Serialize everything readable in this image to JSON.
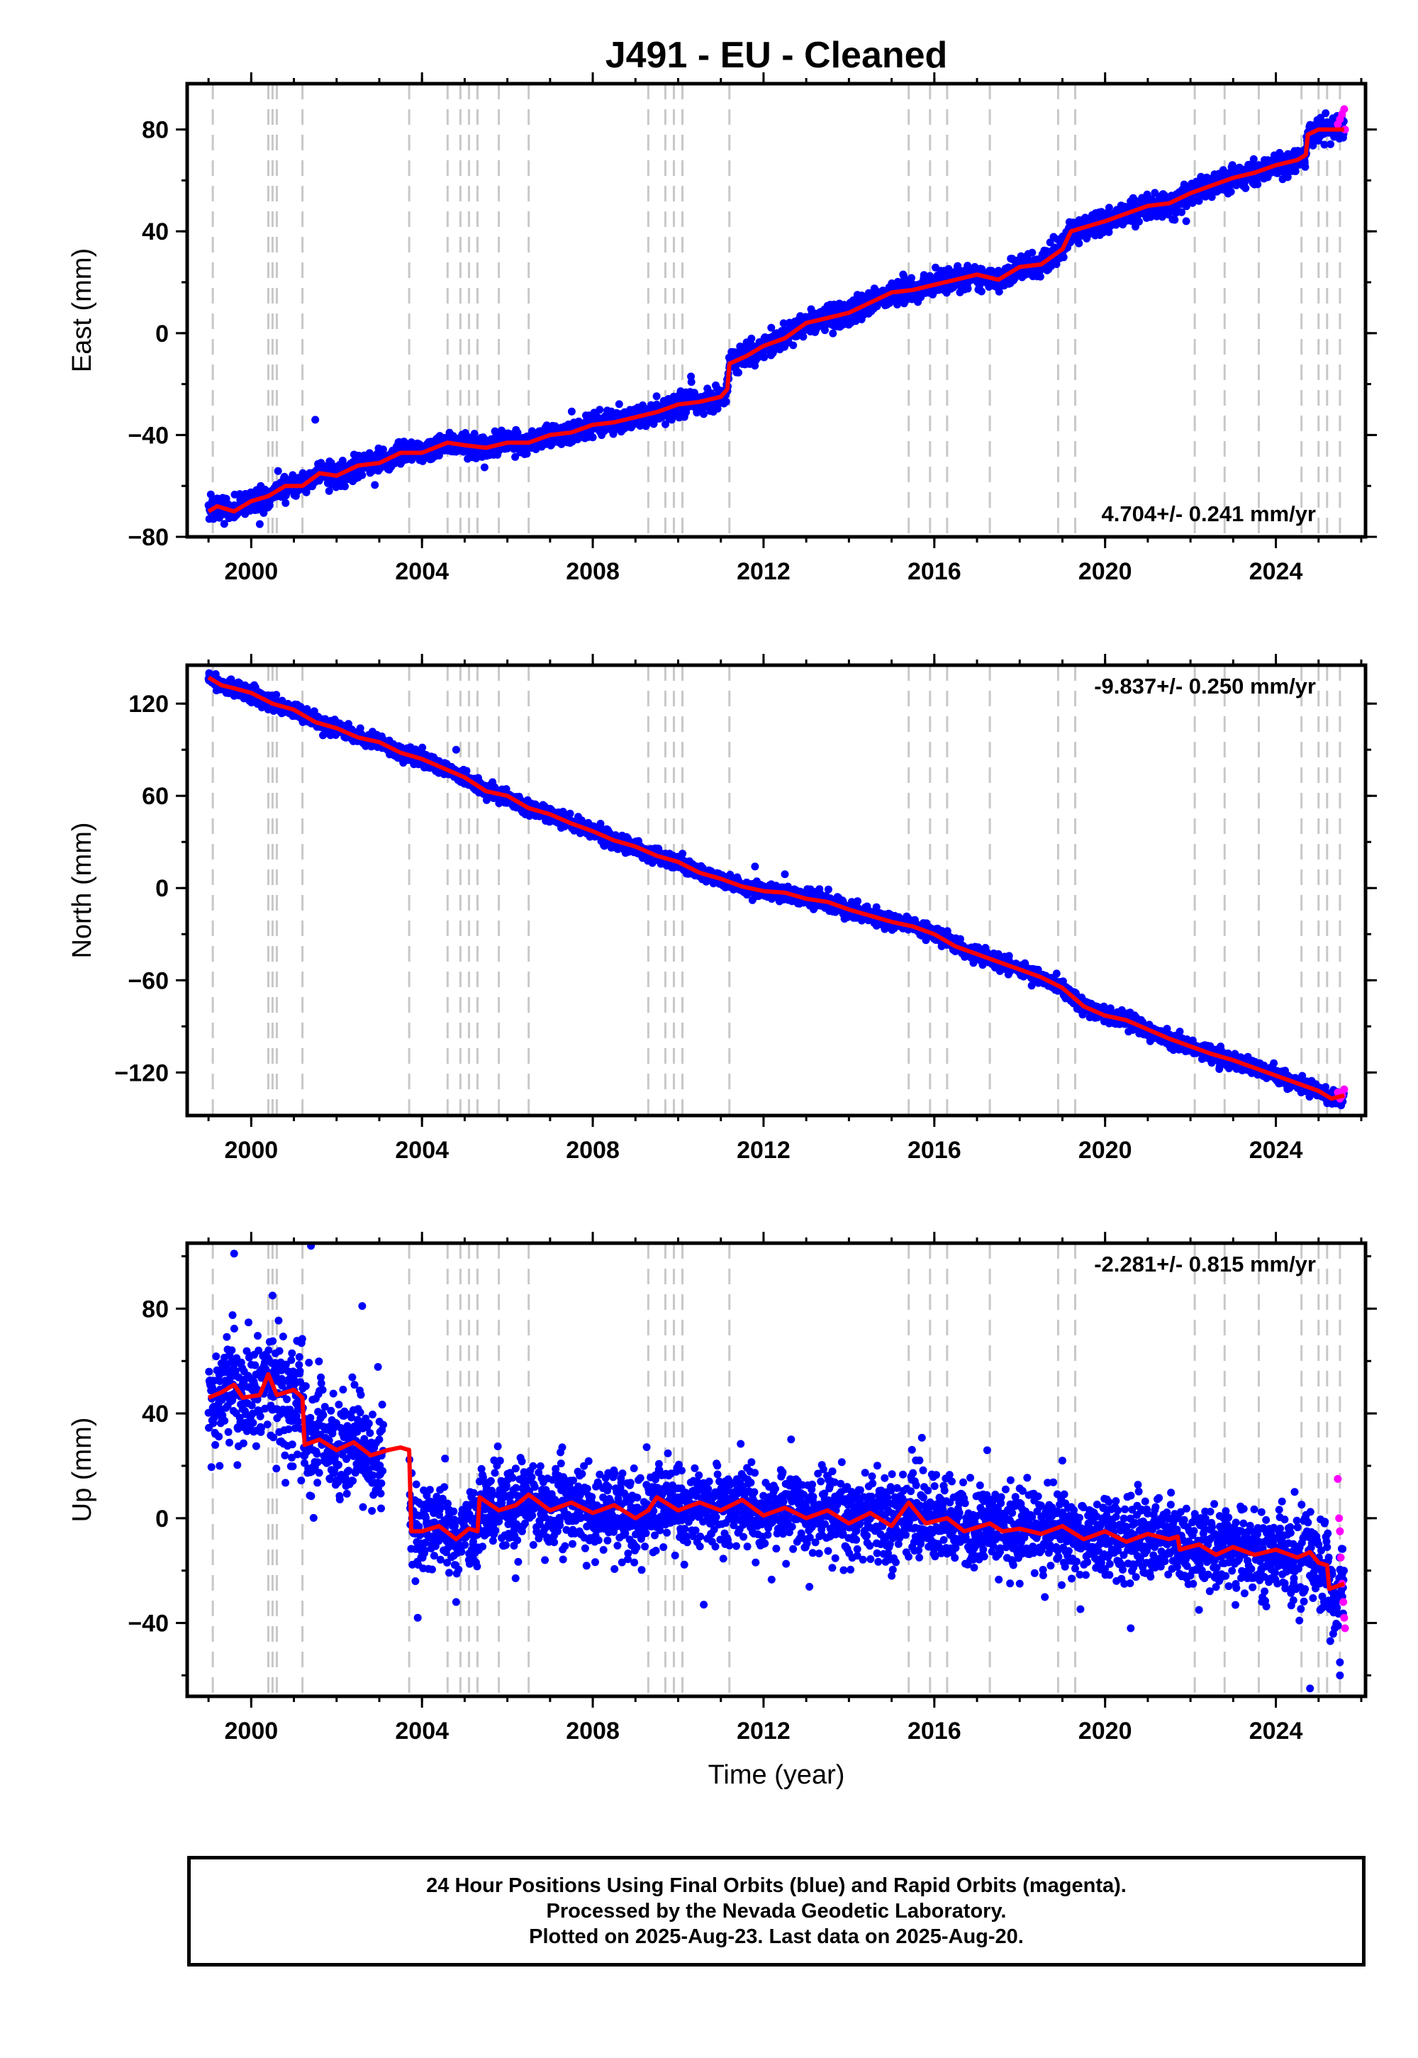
{
  "chart_data": {
    "type": "scatter",
    "title": "J491  - EU - Cleaned",
    "xlabel": "Time (year)",
    "xlim": [
      1998.5,
      2026.1
    ],
    "x_ticks": [
      2000,
      2004,
      2008,
      2012,
      2016,
      2020,
      2024
    ],
    "x_tick_labels": [
      "2000",
      "2004",
      "2008",
      "2012",
      "2016",
      "2020",
      "2024"
    ],
    "vertical_dashed_lines": [
      1999.1,
      2000.4,
      2000.5,
      2000.6,
      2001.2,
      2003.7,
      2004.6,
      2004.9,
      2005.1,
      2005.3,
      2005.8,
      2006.5,
      2009.3,
      2009.7,
      2009.9,
      2010.1,
      2011.2,
      2015.4,
      2015.9,
      2016.3,
      2017.3,
      2018.9,
      2019.3,
      2022.1,
      2022.8,
      2023.6,
      2024.6,
      2025.0,
      2025.2,
      2025.5
    ],
    "colors": {
      "final": "#0000ff",
      "rapid": "#ff00ff",
      "model": "#ff0000",
      "event": "#c8c8c8"
    },
    "panels": [
      {
        "ylabel": "East (mm)",
        "ylim": [
          -80,
          98
        ],
        "y_ticks": [
          -80,
          -40,
          0,
          40,
          80
        ],
        "y_tick_labels": [
          "−80",
          "−40",
          "0",
          "40",
          "80"
        ],
        "rate_label": "4.704+/- 0.241 mm/yr",
        "rate_position": "bottom-right",
        "noise_mm": 2.2,
        "outliers": [
          [
            2001.5,
            -34
          ],
          [
            2000.2,
            -75
          ],
          [
            2010.3,
            -17
          ],
          [
            2013.4,
            8
          ],
          [
            2021.9,
            44
          ]
        ],
        "model_curve": [
          [
            1999.0,
            -70
          ],
          [
            1999.2,
            -68
          ],
          [
            1999.6,
            -70
          ],
          [
            2000.0,
            -66
          ],
          [
            2000.4,
            -64
          ],
          [
            2000.8,
            -60
          ],
          [
            2001.2,
            -60
          ],
          [
            2001.6,
            -55
          ],
          [
            2002.0,
            -56
          ],
          [
            2002.5,
            -52
          ],
          [
            2003.0,
            -51
          ],
          [
            2003.5,
            -47
          ],
          [
            2004.0,
            -47
          ],
          [
            2004.6,
            -43
          ],
          [
            2005.0,
            -44
          ],
          [
            2005.5,
            -45
          ],
          [
            2006.0,
            -43
          ],
          [
            2006.5,
            -43
          ],
          [
            2007.0,
            -40
          ],
          [
            2007.5,
            -39
          ],
          [
            2008.0,
            -36
          ],
          [
            2008.5,
            -35
          ],
          [
            2009.0,
            -33
          ],
          [
            2009.5,
            -31
          ],
          [
            2010.0,
            -28
          ],
          [
            2010.5,
            -27
          ],
          [
            2011.0,
            -25
          ],
          [
            2011.15,
            -22
          ],
          [
            2011.2,
            -12
          ],
          [
            2011.6,
            -9
          ],
          [
            2012.0,
            -5
          ],
          [
            2012.5,
            -2
          ],
          [
            2013.0,
            4
          ],
          [
            2013.5,
            6
          ],
          [
            2014.0,
            8
          ],
          [
            2014.5,
            12
          ],
          [
            2015.0,
            16
          ],
          [
            2015.5,
            17
          ],
          [
            2016.0,
            19
          ],
          [
            2016.5,
            21
          ],
          [
            2017.0,
            23
          ],
          [
            2017.5,
            21
          ],
          [
            2018.0,
            26
          ],
          [
            2018.5,
            27
          ],
          [
            2019.0,
            33
          ],
          [
            2019.2,
            40
          ],
          [
            2019.6,
            42
          ],
          [
            2020.0,
            44
          ],
          [
            2020.5,
            47
          ],
          [
            2021.0,
            50
          ],
          [
            2021.5,
            51
          ],
          [
            2022.0,
            55
          ],
          [
            2022.5,
            58
          ],
          [
            2023.0,
            61
          ],
          [
            2023.5,
            63
          ],
          [
            2024.0,
            66
          ],
          [
            2024.5,
            68
          ],
          [
            2024.7,
            70
          ],
          [
            2024.75,
            78
          ],
          [
            2025.0,
            80
          ],
          [
            2025.6,
            80
          ]
        ],
        "rapid_points": [
          [
            2025.45,
            82
          ],
          [
            2025.5,
            84
          ],
          [
            2025.55,
            86
          ],
          [
            2025.6,
            88
          ],
          [
            2025.62,
            80
          ]
        ]
      },
      {
        "ylabel": "North (mm)",
        "ylim": [
          -148,
          145
        ],
        "y_ticks": [
          -120,
          -60,
          0,
          60,
          120
        ],
        "y_tick_labels": [
          "−120",
          "−60",
          "0",
          "60",
          "120"
        ],
        "rate_label": "-9.837+/- 0.250 mm/yr",
        "rate_position": "top-right",
        "noise_mm": 2.4,
        "outliers": [
          [
            2003.2,
            94
          ],
          [
            2012.5,
            9
          ],
          [
            2011.8,
            14
          ],
          [
            2004.8,
            90
          ]
        ],
        "model_curve": [
          [
            1999.0,
            137
          ],
          [
            1999.3,
            132
          ],
          [
            1999.6,
            130
          ],
          [
            2000.0,
            127
          ],
          [
            2000.5,
            120
          ],
          [
            2001.0,
            116
          ],
          [
            2001.5,
            108
          ],
          [
            2002.0,
            104
          ],
          [
            2002.5,
            98
          ],
          [
            2003.0,
            95
          ],
          [
            2003.5,
            88
          ],
          [
            2004.0,
            84
          ],
          [
            2004.5,
            78
          ],
          [
            2005.0,
            72
          ],
          [
            2005.5,
            63
          ],
          [
            2006.0,
            60
          ],
          [
            2006.5,
            52
          ],
          [
            2007.0,
            48
          ],
          [
            2007.5,
            42
          ],
          [
            2008.0,
            37
          ],
          [
            2008.5,
            31
          ],
          [
            2009.0,
            27
          ],
          [
            2009.5,
            21
          ],
          [
            2010.0,
            17
          ],
          [
            2010.5,
            10
          ],
          [
            2011.0,
            6
          ],
          [
            2011.5,
            1
          ],
          [
            2012.0,
            -2
          ],
          [
            2012.5,
            -3
          ],
          [
            2013.0,
            -7
          ],
          [
            2013.5,
            -9
          ],
          [
            2014.0,
            -14
          ],
          [
            2014.5,
            -18
          ],
          [
            2015.0,
            -22
          ],
          [
            2015.5,
            -25
          ],
          [
            2016.0,
            -30
          ],
          [
            2016.5,
            -38
          ],
          [
            2017.0,
            -43
          ],
          [
            2017.5,
            -48
          ],
          [
            2018.0,
            -53
          ],
          [
            2018.5,
            -58
          ],
          [
            2019.0,
            -65
          ],
          [
            2019.5,
            -77
          ],
          [
            2020.0,
            -83
          ],
          [
            2020.5,
            -86
          ],
          [
            2021.0,
            -92
          ],
          [
            2021.5,
            -98
          ],
          [
            2022.0,
            -103
          ],
          [
            2022.5,
            -108
          ],
          [
            2023.0,
            -112
          ],
          [
            2023.5,
            -117
          ],
          [
            2024.0,
            -122
          ],
          [
            2024.5,
            -127
          ],
          [
            2025.0,
            -132
          ],
          [
            2025.3,
            -137
          ],
          [
            2025.6,
            -135
          ]
        ],
        "rapid_points": [
          [
            2025.45,
            -133
          ],
          [
            2025.5,
            -137
          ],
          [
            2025.55,
            -135
          ],
          [
            2025.6,
            -131
          ]
        ]
      },
      {
        "ylabel": "Up (mm)",
        "ylim": [
          -68,
          105
        ],
        "y_ticks": [
          -40,
          0,
          40,
          80
        ],
        "y_tick_labels": [
          "−40",
          "0",
          "40",
          "80"
        ],
        "rate_label": "-2.281+/- 0.815 mm/yr",
        "rate_position": "top-right",
        "noise_mm": 8,
        "outliers": [
          [
            1999.6,
            101
          ],
          [
            2001.4,
            104
          ],
          [
            2002.6,
            81
          ],
          [
            2000.5,
            85
          ],
          [
            2003.9,
            -38
          ],
          [
            2004.8,
            -32
          ],
          [
            2015.0,
            -22
          ],
          [
            2018.0,
            -25
          ],
          [
            2019.0,
            22
          ],
          [
            2020.6,
            -42
          ],
          [
            2024.8,
            -65
          ],
          [
            2025.5,
            -60
          ],
          [
            2025.5,
            -55
          ],
          [
            2010.6,
            -33
          ],
          [
            2022.2,
            -35
          ]
        ],
        "model_curve": [
          [
            1999.0,
            46
          ],
          [
            1999.3,
            48
          ],
          [
            1999.6,
            51
          ],
          [
            1999.8,
            46
          ],
          [
            2000.2,
            47
          ],
          [
            2000.4,
            55
          ],
          [
            2000.6,
            47
          ],
          [
            2001.0,
            49
          ],
          [
            2001.2,
            46
          ],
          [
            2001.25,
            28
          ],
          [
            2001.6,
            30
          ],
          [
            2002.0,
            26
          ],
          [
            2002.4,
            29
          ],
          [
            2002.8,
            24
          ],
          [
            2003.2,
            26
          ],
          [
            2003.5,
            27
          ],
          [
            2003.7,
            26
          ],
          [
            2003.75,
            -5
          ],
          [
            2004.0,
            -5
          ],
          [
            2004.4,
            -3
          ],
          [
            2004.8,
            -8
          ],
          [
            2005.1,
            -4
          ],
          [
            2005.3,
            -5
          ],
          [
            2005.35,
            8
          ],
          [
            2005.8,
            3
          ],
          [
            2006.2,
            5
          ],
          [
            2006.5,
            9
          ],
          [
            2007.0,
            3
          ],
          [
            2007.5,
            6
          ],
          [
            2008.0,
            2
          ],
          [
            2008.5,
            5
          ],
          [
            2009.0,
            0
          ],
          [
            2009.3,
            3
          ],
          [
            2009.5,
            8
          ],
          [
            2010.0,
            3
          ],
          [
            2010.5,
            6
          ],
          [
            2011.0,
            3
          ],
          [
            2011.5,
            7
          ],
          [
            2012.0,
            1
          ],
          [
            2012.5,
            4
          ],
          [
            2013.0,
            0
          ],
          [
            2013.5,
            3
          ],
          [
            2014.0,
            -2
          ],
          [
            2014.5,
            2
          ],
          [
            2015.0,
            -3
          ],
          [
            2015.4,
            6
          ],
          [
            2015.8,
            -2
          ],
          [
            2016.3,
            0
          ],
          [
            2016.7,
            -5
          ],
          [
            2017.3,
            -2
          ],
          [
            2017.6,
            -5
          ],
          [
            2018.0,
            -4
          ],
          [
            2018.5,
            -6
          ],
          [
            2019.0,
            -3
          ],
          [
            2019.5,
            -8
          ],
          [
            2020.0,
            -5
          ],
          [
            2020.5,
            -9
          ],
          [
            2021.0,
            -6
          ],
          [
            2021.5,
            -8
          ],
          [
            2021.7,
            -7
          ],
          [
            2021.75,
            -12
          ],
          [
            2022.2,
            -10
          ],
          [
            2022.6,
            -14
          ],
          [
            2023.0,
            -11
          ],
          [
            2023.5,
            -14
          ],
          [
            2024.0,
            -12
          ],
          [
            2024.5,
            -15
          ],
          [
            2024.8,
            -13
          ],
          [
            2025.0,
            -17
          ],
          [
            2025.2,
            -18
          ],
          [
            2025.25,
            -27
          ],
          [
            2025.6,
            -25
          ]
        ],
        "rapid_points": [
          [
            2025.45,
            15
          ],
          [
            2025.5,
            -5
          ],
          [
            2025.52,
            -15
          ],
          [
            2025.55,
            -25
          ],
          [
            2025.6,
            -38
          ],
          [
            2025.62,
            -42
          ],
          [
            2025.48,
            0
          ],
          [
            2025.58,
            -32
          ]
        ]
      }
    ]
  },
  "caption": {
    "line1": "24 Hour Positions Using Final Orbits (blue) and Rapid Orbits (magenta).",
    "line2": "Processed by the Nevada Geodetic Laboratory.",
    "line3": "Plotted on 2025-Aug-23. Last data on 2025-Aug-20."
  }
}
